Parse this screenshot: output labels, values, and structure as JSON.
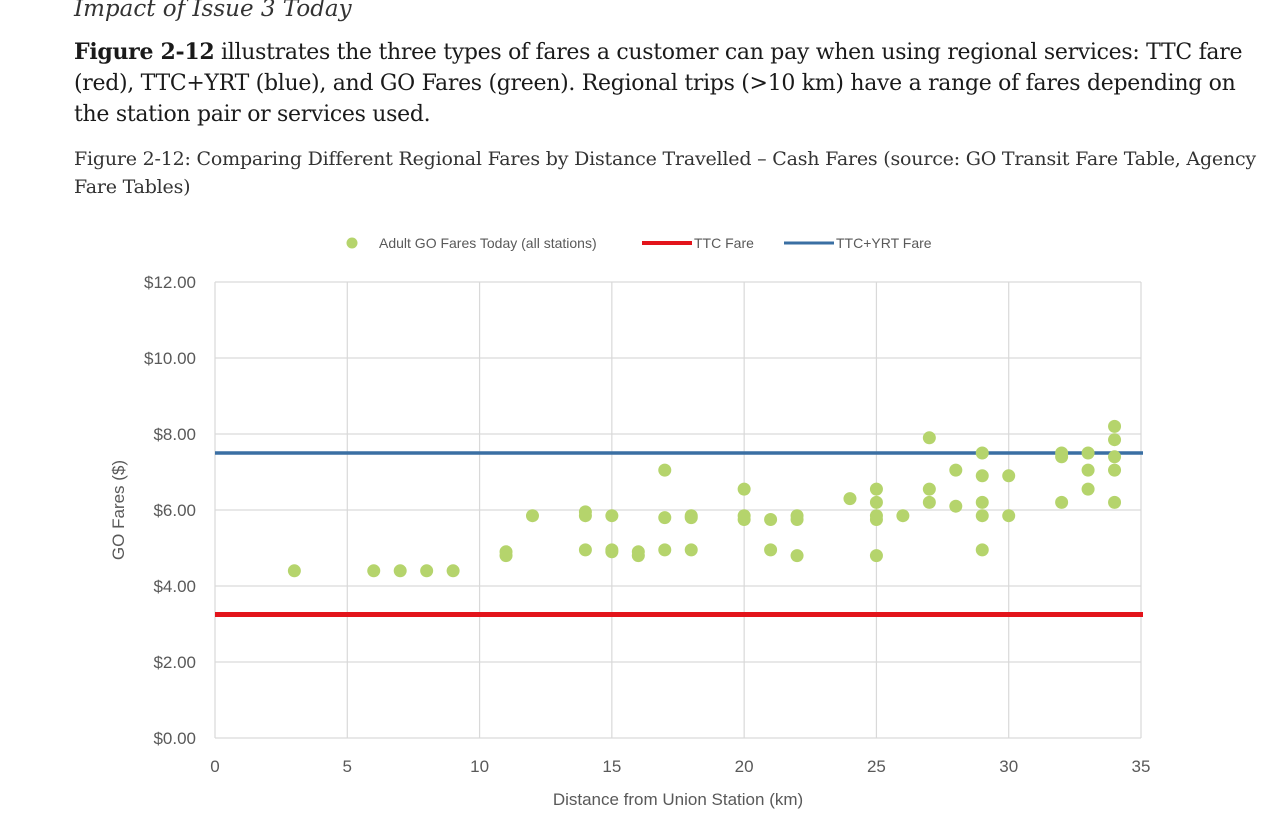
{
  "document": {
    "section_heading": "Impact of Issue 3 Today",
    "paragraph_bold": "Figure 2-12",
    "paragraph_text": " illustrates the three types of fares a customer can pay when using regional services: TTC fare (red), TTC+YRT (blue), and GO Fares (green). Regional trips (>10 km) have a range of fares depending on the station pair or services used.",
    "figure_caption": "Figure 2-12: Comparing Different Regional Fares by Distance Travelled – Cash Fares (source: GO Transit Fare Table, Agency Fare Tables)"
  },
  "colors": {
    "go": "#b5d46c",
    "ttc": "#e3141b",
    "yrt": "#3a6fa3",
    "grid": "#d9d9d9",
    "axis_text": "#595959"
  },
  "chart_data": {
    "type": "scatter",
    "title": "",
    "xlabel": "Distance from Union Station (km)",
    "ylabel": "GO Fares ($)",
    "xlim": [
      0,
      35
    ],
    "ylim": [
      0,
      12
    ],
    "x_ticks": [
      0,
      5,
      10,
      15,
      20,
      25,
      30,
      35
    ],
    "y_ticks": [
      0,
      2,
      4,
      6,
      8,
      10,
      12
    ],
    "y_tick_labels": [
      "$0.00",
      "$2.00",
      "$4.00",
      "$6.00",
      "$8.00",
      "$10.00",
      "$12.00"
    ],
    "grid": true,
    "legend_position": "top",
    "series": [
      {
        "name": "Adult GO Fares Today (all stations)",
        "kind": "scatter",
        "points": [
          [
            3,
            4.4
          ],
          [
            6,
            4.4
          ],
          [
            7,
            4.4
          ],
          [
            8,
            4.4
          ],
          [
            9,
            4.4
          ],
          [
            11,
            4.8
          ],
          [
            11,
            4.9
          ],
          [
            12,
            5.85
          ],
          [
            14,
            4.95
          ],
          [
            14,
            5.85
          ],
          [
            14,
            5.95
          ],
          [
            15,
            4.9
          ],
          [
            15,
            4.95
          ],
          [
            15,
            5.85
          ],
          [
            16,
            4.8
          ],
          [
            16,
            4.9
          ],
          [
            17,
            4.95
          ],
          [
            17,
            5.8
          ],
          [
            17,
            7.05
          ],
          [
            18,
            4.95
          ],
          [
            18,
            5.8
          ],
          [
            18,
            5.85
          ],
          [
            20,
            5.75
          ],
          [
            20,
            5.85
          ],
          [
            20,
            6.55
          ],
          [
            21,
            4.95
          ],
          [
            21,
            5.75
          ],
          [
            22,
            4.8
          ],
          [
            22,
            5.75
          ],
          [
            22,
            5.85
          ],
          [
            24,
            6.3
          ],
          [
            25,
            4.8
          ],
          [
            25,
            5.75
          ],
          [
            25,
            5.85
          ],
          [
            25,
            6.2
          ],
          [
            25,
            6.55
          ],
          [
            26,
            5.85
          ],
          [
            27,
            6.2
          ],
          [
            27,
            6.55
          ],
          [
            27,
            7.9
          ],
          [
            28,
            6.1
          ],
          [
            28,
            7.05
          ],
          [
            29,
            4.95
          ],
          [
            29,
            5.85
          ],
          [
            29,
            6.2
          ],
          [
            29,
            6.9
          ],
          [
            29,
            7.5
          ],
          [
            30,
            5.85
          ],
          [
            30,
            6.9
          ],
          [
            32,
            6.2
          ],
          [
            32,
            7.4
          ],
          [
            32,
            7.5
          ],
          [
            33,
            6.55
          ],
          [
            33,
            7.05
          ],
          [
            33,
            7.5
          ],
          [
            34,
            6.2
          ],
          [
            34,
            7.05
          ],
          [
            34,
            7.4
          ],
          [
            34,
            7.85
          ],
          [
            34,
            8.2
          ]
        ]
      },
      {
        "name": "TTC Fare",
        "kind": "hline",
        "value": 3.25
      },
      {
        "name": "TTC+YRT Fare",
        "kind": "hline",
        "value": 7.5
      }
    ]
  }
}
